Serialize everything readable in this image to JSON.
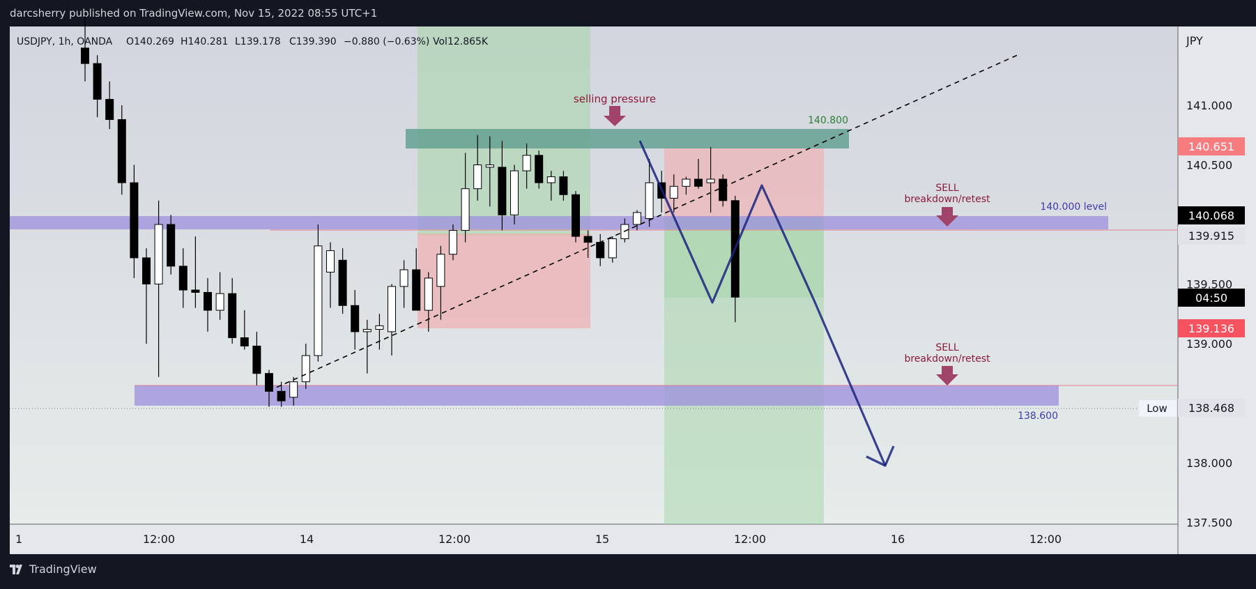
{
  "header": {
    "published_by": "darcsherry published on TradingView.com, Nov 15, 2022 08:55 UTC+1"
  },
  "legend": {
    "symbol_line": "USDJPY, 1h, OANDA",
    "open": "O140.269",
    "high": "H140.281",
    "low": "L139.178",
    "close": "C139.390",
    "change": "−0.880 (−0.63%)",
    "volume": "Vol12.865K"
  },
  "annotations": {
    "selling_pressure": "selling pressure",
    "sell_label_1": "SELL",
    "sell_sub_1": "breakdown/retest",
    "sell_label_2": "SELL",
    "sell_sub_2": "breakdown/retest",
    "level_140": "140.000 level",
    "level_140800": "140.800",
    "level_138600": "138.600"
  },
  "price_axis": {
    "currency": "JPY",
    "low_label": "Low"
  },
  "price_badges": [
    {
      "value": "140.651",
      "bg": "#f77c80",
      "fg": "#ffffff"
    },
    {
      "value": "140.068",
      "bg": "#000000",
      "fg": "#ffffff"
    },
    {
      "value": "139.915",
      "bg": "#e1e3e8",
      "fg": "#131722"
    },
    {
      "value": "04:50",
      "bg": "#000000",
      "fg": "#ffffff"
    },
    {
      "value": "139.136",
      "bg": "#f7525f",
      "fg": "#ffffff"
    },
    {
      "value": "138.468",
      "bg": "#e1e3e8",
      "fg": "#131722"
    }
  ],
  "footer": {
    "brand": "TradingView"
  },
  "colors": {
    "background": "#131722",
    "plot_bg_top": "#d1d4dc",
    "plot_bg_bottom": "#e8ecec",
    "bull_candle": "#ffffff",
    "bear_candle": "#000000",
    "supply_zone": "#5f9e8f",
    "level_band": "#9c8fdd",
    "profit_zone": "#a5d6a7",
    "loss_zone": "#f4a6a8",
    "forecast_arrow": "#1a237e",
    "annotation_text": "#8b1a3a"
  },
  "chart_data": {
    "type": "candlestick",
    "symbol": "USDJPY",
    "timeframe": "1h",
    "broker": "OANDA",
    "currency": "JPY",
    "y_ticks": [
      141.0,
      140.5,
      139.5,
      139.0,
      138.0,
      137.5
    ],
    "y_tick_labels": [
      "141.000",
      "140.500",
      "139.500",
      "139.000",
      "138.000",
      "137.500"
    ],
    "x_ticks": [
      "1",
      "12:00",
      "14",
      "12:00",
      "15",
      "12:00",
      "16",
      "12:00"
    ],
    "ylim": [
      137.5,
      141.6
    ],
    "candles": [
      {
        "o": 141.48,
        "h": 141.75,
        "l": 141.2,
        "c": 141.35
      },
      {
        "o": 141.35,
        "h": 141.42,
        "l": 140.9,
        "c": 141.05
      },
      {
        "o": 141.05,
        "h": 141.2,
        "l": 140.8,
        "c": 140.88
      },
      {
        "o": 140.88,
        "h": 141.0,
        "l": 140.25,
        "c": 140.35
      },
      {
        "o": 140.35,
        "h": 140.5,
        "l": 139.55,
        "c": 139.72
      },
      {
        "o": 139.72,
        "h": 139.8,
        "l": 139.0,
        "c": 139.5
      },
      {
        "o": 139.5,
        "h": 140.2,
        "l": 138.72,
        "c": 140.0
      },
      {
        "o": 140.0,
        "h": 140.08,
        "l": 139.58,
        "c": 139.65
      },
      {
        "o": 139.65,
        "h": 139.8,
        "l": 139.3,
        "c": 139.45
      },
      {
        "o": 139.45,
        "h": 139.9,
        "l": 139.3,
        "c": 139.43
      },
      {
        "o": 139.43,
        "h": 139.55,
        "l": 139.1,
        "c": 139.28
      },
      {
        "o": 139.28,
        "h": 139.6,
        "l": 139.2,
        "c": 139.42
      },
      {
        "o": 139.42,
        "h": 139.55,
        "l": 139.0,
        "c": 139.05
      },
      {
        "o": 139.05,
        "h": 139.28,
        "l": 138.95,
        "c": 138.98
      },
      {
        "o": 138.98,
        "h": 139.1,
        "l": 138.65,
        "c": 138.75
      },
      {
        "o": 138.75,
        "h": 138.78,
        "l": 138.47,
        "c": 138.6
      },
      {
        "o": 138.6,
        "h": 138.68,
        "l": 138.47,
        "c": 138.52
      },
      {
        "o": 138.55,
        "h": 138.72,
        "l": 138.48,
        "c": 138.68
      },
      {
        "o": 138.68,
        "h": 139.0,
        "l": 138.62,
        "c": 138.9
      },
      {
        "o": 138.9,
        "h": 140.0,
        "l": 138.85,
        "c": 139.82
      },
      {
        "o": 139.6,
        "h": 139.85,
        "l": 139.3,
        "c": 139.78
      },
      {
        "o": 139.7,
        "h": 139.8,
        "l": 139.25,
        "c": 139.32
      },
      {
        "o": 139.32,
        "h": 139.45,
        "l": 138.95,
        "c": 139.1
      },
      {
        "o": 139.1,
        "h": 139.2,
        "l": 138.75,
        "c": 139.12
      },
      {
        "o": 139.12,
        "h": 139.25,
        "l": 138.95,
        "c": 139.15
      },
      {
        "o": 139.1,
        "h": 139.5,
        "l": 138.9,
        "c": 139.48
      },
      {
        "o": 139.48,
        "h": 139.7,
        "l": 139.3,
        "c": 139.62
      },
      {
        "o": 139.62,
        "h": 139.8,
        "l": 139.3,
        "c": 139.28
      },
      {
        "o": 139.28,
        "h": 139.6,
        "l": 139.1,
        "c": 139.55
      },
      {
        "o": 139.48,
        "h": 139.82,
        "l": 139.2,
        "c": 139.75
      },
      {
        "o": 139.75,
        "h": 140.0,
        "l": 139.7,
        "c": 139.95
      },
      {
        "o": 139.95,
        "h": 140.6,
        "l": 139.85,
        "c": 140.3
      },
      {
        "o": 140.3,
        "h": 140.75,
        "l": 140.2,
        "c": 140.5
      },
      {
        "o": 140.48,
        "h": 140.74,
        "l": 140.15,
        "c": 140.5
      },
      {
        "o": 140.48,
        "h": 140.7,
        "l": 139.95,
        "c": 140.08
      },
      {
        "o": 140.08,
        "h": 140.5,
        "l": 140.0,
        "c": 140.45
      },
      {
        "o": 140.45,
        "h": 140.68,
        "l": 140.3,
        "c": 140.58
      },
      {
        "o": 140.58,
        "h": 140.62,
        "l": 140.3,
        "c": 140.35
      },
      {
        "o": 140.35,
        "h": 140.45,
        "l": 140.2,
        "c": 140.4
      },
      {
        "o": 140.4,
        "h": 140.45,
        "l": 140.2,
        "c": 140.25
      },
      {
        "o": 140.25,
        "h": 140.28,
        "l": 139.85,
        "c": 139.9
      },
      {
        "o": 139.9,
        "h": 139.95,
        "l": 139.72,
        "c": 139.85
      },
      {
        "o": 139.85,
        "h": 139.92,
        "l": 139.65,
        "c": 139.72
      },
      {
        "o": 139.72,
        "h": 139.9,
        "l": 139.68,
        "c": 139.88
      },
      {
        "o": 139.88,
        "h": 140.05,
        "l": 139.85,
        "c": 140.0
      },
      {
        "o": 140.0,
        "h": 140.12,
        "l": 139.95,
        "c": 140.1
      },
      {
        "o": 140.05,
        "h": 140.55,
        "l": 139.98,
        "c": 140.35
      },
      {
        "o": 140.35,
        "h": 140.45,
        "l": 140.1,
        "c": 140.22
      },
      {
        "o": 140.22,
        "h": 140.42,
        "l": 140.1,
        "c": 140.32
      },
      {
        "o": 140.32,
        "h": 140.4,
        "l": 140.25,
        "c": 140.38
      },
      {
        "o": 140.38,
        "h": 140.55,
        "l": 140.3,
        "c": 140.32
      },
      {
        "o": 140.35,
        "h": 140.65,
        "l": 140.1,
        "c": 140.38
      },
      {
        "o": 140.38,
        "h": 140.42,
        "l": 140.15,
        "c": 140.2
      },
      {
        "o": 140.2,
        "h": 140.24,
        "l": 139.18,
        "c": 139.39
      }
    ],
    "horizontal_levels": [
      {
        "label": "140.000 level",
        "value": 140.0
      },
      {
        "label": "138.600",
        "value": 138.6
      },
      {
        "label": "140.800",
        "value": 140.8
      }
    ],
    "last_price": 140.068,
    "session_low": 138.468
  }
}
